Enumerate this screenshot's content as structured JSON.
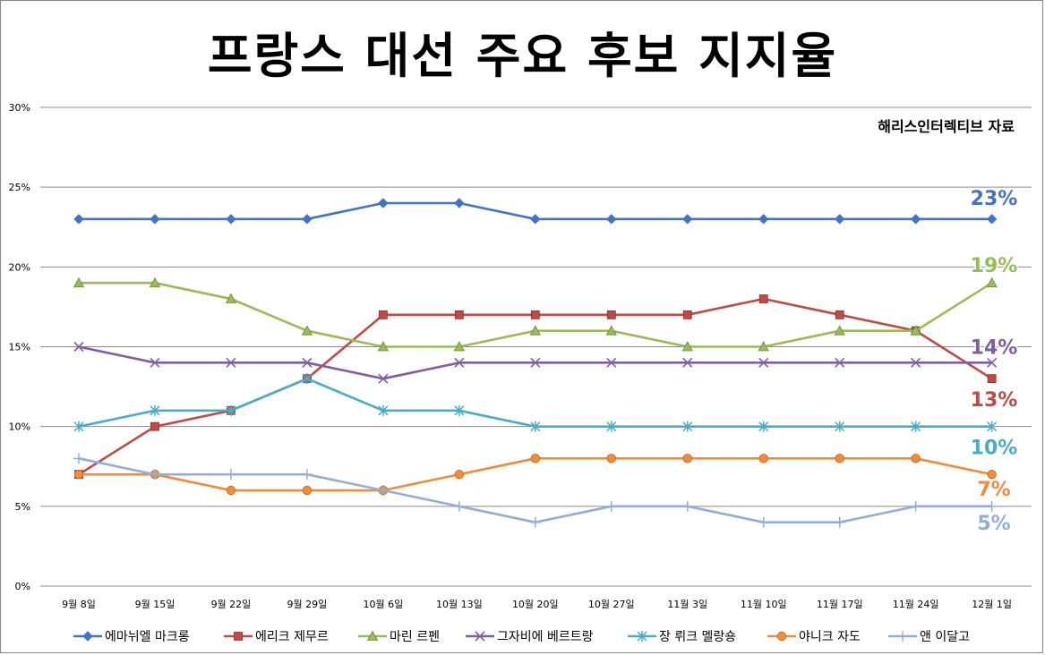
{
  "chart_data": {
    "type": "line",
    "title": "프랑스 대선 주요 후보 지지율",
    "source": "해리스인터렉티브 자료",
    "categories": [
      "9월 8일",
      "9월 15일",
      "9월 22일",
      "9월 29일",
      "10월 6일",
      "10월 13일",
      "10월 20일",
      "10월 27일",
      "11월 3일",
      "11월 10일",
      "11월 17일",
      "11월 24일",
      "12월 1일"
    ],
    "ylim": [
      0,
      30
    ],
    "yticks": [
      0,
      5,
      10,
      15,
      20,
      25,
      30
    ],
    "ytick_labels": [
      "0%",
      "5%",
      "10%",
      "15%",
      "20%",
      "25%",
      "30%"
    ],
    "grid": true,
    "legend_position": "bottom",
    "series": [
      {
        "name": "에마뉘엘 마크롱",
        "color": "#4472C4",
        "marker": "diamond",
        "values": [
          23,
          23,
          23,
          23,
          24,
          24,
          23,
          23,
          23,
          23,
          23,
          23,
          23
        ],
        "end_label": "23%"
      },
      {
        "name": "에리크 제무르",
        "color": "#BE4B48",
        "marker": "square",
        "values": [
          7,
          10,
          11,
          13,
          17,
          17,
          17,
          17,
          17,
          18,
          17,
          16,
          13
        ],
        "end_label": "13%"
      },
      {
        "name": "마린 르펜",
        "color": "#9BBB59",
        "marker": "triangle",
        "values": [
          19,
          19,
          18,
          16,
          15,
          15,
          16,
          16,
          15,
          15,
          16,
          16,
          19
        ],
        "end_label": "19%"
      },
      {
        "name": "그자비에 베르트랑",
        "color": "#7F5FA0",
        "marker": "x",
        "values": [
          15,
          14,
          14,
          14,
          13,
          14,
          14,
          14,
          14,
          14,
          14,
          14,
          14
        ],
        "end_label": "14%"
      },
      {
        "name": "장 뤼크 멜랑숑",
        "color": "#4BACC6",
        "marker": "star",
        "values": [
          10,
          11,
          11,
          13,
          11,
          11,
          10,
          10,
          10,
          10,
          10,
          10,
          10
        ],
        "end_label": "10%"
      },
      {
        "name": "야니크 자도",
        "color": "#F08C3C",
        "marker": "circle",
        "values": [
          7,
          7,
          6,
          6,
          6,
          7,
          8,
          8,
          8,
          8,
          8,
          8,
          7
        ],
        "end_label": "7%"
      },
      {
        "name": "앤 이달고",
        "color": "#95AED6",
        "marker": "plus",
        "values": [
          8,
          7,
          7,
          7,
          6,
          5,
          4,
          5,
          5,
          4,
          4,
          5,
          5
        ],
        "end_label": "5%"
      }
    ]
  }
}
